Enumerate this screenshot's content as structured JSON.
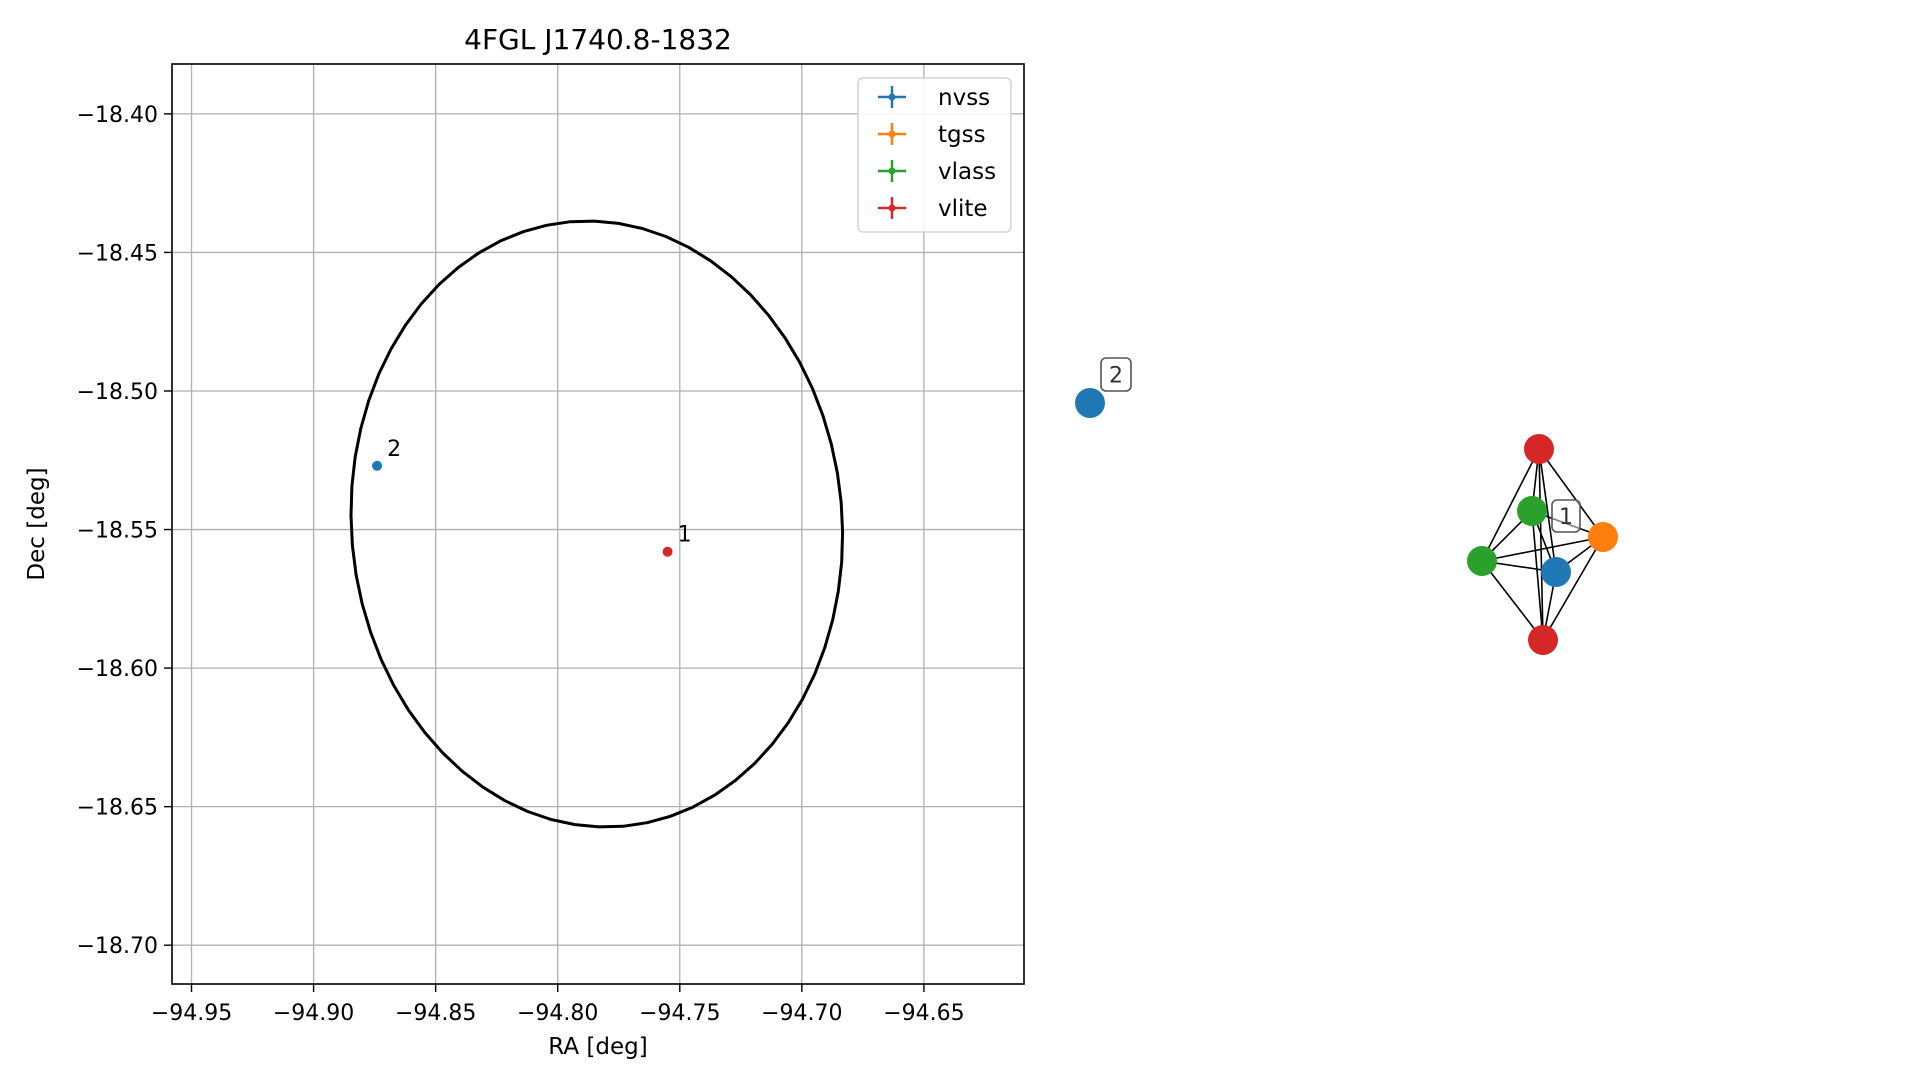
{
  "colors": {
    "nvss": "#1f77b4",
    "tgss": "#ff7f0e",
    "vlass": "#2ca02c",
    "vlite": "#d62728",
    "ellipse": "#000000",
    "grid": "#b0b0b0"
  },
  "chart_data": [
    {
      "type": "scatter",
      "title": "4FGL J1740.8-1832",
      "xlabel": "RA [deg]",
      "ylabel": "Dec [deg]",
      "xlim": [
        -94.958,
        -94.609
      ],
      "ylim": [
        -18.714,
        -18.382
      ],
      "xticks": [
        -94.95,
        -94.9,
        -94.85,
        -94.8,
        -94.75,
        -94.7,
        -94.65
      ],
      "xtick_labels": [
        "−94.95",
        "−94.90",
        "−94.85",
        "−94.80",
        "−94.75",
        "−94.70",
        "−94.65"
      ],
      "yticks": [
        -18.4,
        -18.45,
        -18.5,
        -18.55,
        -18.6,
        -18.65,
        -18.7
      ],
      "ytick_labels": [
        "−18.40",
        "−18.45",
        "−18.50",
        "−18.55",
        "−18.60",
        "−18.65",
        "−18.70"
      ],
      "grid": true,
      "legend_position": "top-right",
      "legend": [
        {
          "label": "nvss",
          "color_key": "nvss"
        },
        {
          "label": "tgss",
          "color_key": "tgss"
        },
        {
          "label": "vlass",
          "color_key": "vlass"
        },
        {
          "label": "vlite",
          "color_key": "vlite"
        }
      ],
      "points": [
        {
          "label": "2",
          "ra": -94.874,
          "dec": -18.527,
          "color_key": "nvss"
        },
        {
          "label": "1",
          "ra": -94.755,
          "dec": -18.558,
          "color_key": "vlite"
        }
      ],
      "ellipse": {
        "center_ra": -94.784,
        "center_dec": -18.548,
        "semi_axis_ra": 0.1005,
        "semi_axis_dec": 0.1095,
        "rotation_deg": -5
      }
    },
    {
      "type": "network",
      "node_labels": [
        "2",
        "1"
      ],
      "nodes": [
        {
          "id": "n2",
          "color_key": "nvss",
          "label": "2"
        },
        {
          "id": "red_top",
          "color_key": "vlite"
        },
        {
          "id": "green_mid",
          "color_key": "vlass"
        },
        {
          "id": "orange",
          "color_key": "tgss"
        },
        {
          "id": "green_left",
          "color_key": "vlass"
        },
        {
          "id": "blue_1",
          "color_key": "nvss",
          "label": "1"
        },
        {
          "id": "red_bottom",
          "color_key": "vlite"
        }
      ],
      "edges": [
        [
          "red_top",
          "green_mid"
        ],
        [
          "red_top",
          "orange"
        ],
        [
          "red_top",
          "green_left"
        ],
        [
          "red_top",
          "blue_1"
        ],
        [
          "red_top",
          "red_bottom"
        ],
        [
          "green_mid",
          "orange"
        ],
        [
          "green_mid",
          "green_left"
        ],
        [
          "green_mid",
          "blue_1"
        ],
        [
          "green_mid",
          "red_bottom"
        ],
        [
          "orange",
          "green_left"
        ],
        [
          "orange",
          "blue_1"
        ],
        [
          "orange",
          "red_bottom"
        ],
        [
          "green_left",
          "blue_1"
        ],
        [
          "green_left",
          "red_bottom"
        ],
        [
          "blue_1",
          "red_bottom"
        ]
      ]
    }
  ]
}
